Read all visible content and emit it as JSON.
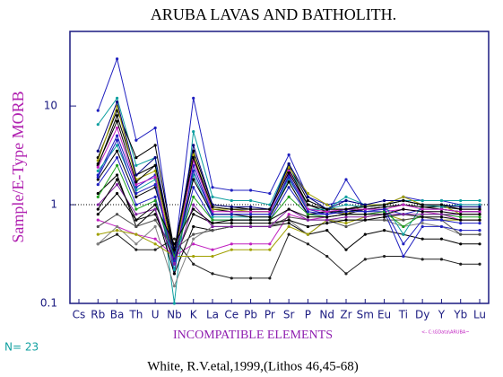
{
  "chart_data": {
    "type": "line",
    "title": "ARUBA LAVAS AND BATHOLITH.",
    "y_label": "Sample/E-Type MORB",
    "x_label": "INCOMPATIBLE ELEMENTS",
    "count_label": "N= 23",
    "file_label": "<- C:\\GData\\ARUBA~",
    "source": "White, R.V.etal,1999,(Lithos 46,45-68)",
    "log_y": true,
    "reference_line": 1,
    "ylim": [
      0.1,
      57
    ],
    "yticks": [
      0.1,
      1,
      10
    ],
    "categories": [
      "Cs",
      "Rb",
      "Ba",
      "Th",
      "U",
      "Nb",
      "K",
      "La",
      "Ce",
      "Pb",
      "Pr",
      "Sr",
      "P",
      "Nd",
      "Zr",
      "Sm",
      "Eu",
      "Ti",
      "Dy",
      "Y",
      "Yb",
      "Lu"
    ],
    "series": [
      {
        "color": "#2020c0",
        "values": [
          null,
          9,
          30,
          4.5,
          6,
          0.3,
          12,
          1.5,
          1.4,
          1.4,
          1.3,
          3.2,
          1.2,
          1,
          1.1,
          1,
          1,
          1.2,
          1.1,
          1.1,
          1,
          1
        ]
      },
      {
        "color": "#10a0a0",
        "values": [
          null,
          6.5,
          12,
          2.5,
          3,
          0.1,
          5.5,
          1.2,
          1.1,
          1.1,
          1,
          2.6,
          0.9,
          0.9,
          1.2,
          1,
          1,
          1.1,
          1.1,
          1.1,
          1.1,
          1.1
        ]
      },
      {
        "color": "#000000",
        "values": [
          null,
          3,
          9,
          3,
          4,
          0.35,
          3.5,
          1,
          0.95,
          0.9,
          0.9,
          2.5,
          1.1,
          0.9,
          0.9,
          1,
          1,
          1.1,
          1,
          1,
          0.95,
          0.95
        ]
      },
      {
        "color": "#000000",
        "values": [
          null,
          2.5,
          8,
          2,
          2.5,
          0.3,
          3,
          0.9,
          0.85,
          0.85,
          0.85,
          2.3,
          1,
          0.85,
          0.8,
          0.9,
          0.95,
          1,
          0.95,
          0.95,
          0.9,
          0.9
        ]
      },
      {
        "color": "#2020c0",
        "values": [
          null,
          2,
          5,
          1.5,
          2,
          0.2,
          2.5,
          0.8,
          0.8,
          0.8,
          0.8,
          2,
          0.9,
          0.8,
          1.8,
          0.9,
          0.9,
          0.8,
          0.9,
          0.9,
          0.85,
          0.85
        ]
      },
      {
        "color": "#a0a000",
        "values": [
          null,
          2.8,
          10,
          1.8,
          2.2,
          0.28,
          3.2,
          0.9,
          0.9,
          0.85,
          0.85,
          2.4,
          1.3,
          1,
          0.8,
          1,
          1,
          1.2,
          1,
          1,
          0.8,
          0.8
        ]
      },
      {
        "color": "#c020c0",
        "values": [
          null,
          0.7,
          0.6,
          0.5,
          0.45,
          0.3,
          0.4,
          0.35,
          0.4,
          0.4,
          0.4,
          0.8,
          0.7,
          0.75,
          0.8,
          0.8,
          0.85,
          0.9,
          0.85,
          0.8,
          0.7,
          0.7
        ]
      },
      {
        "color": "#202020",
        "values": [
          null,
          0.4,
          0.5,
          0.35,
          0.35,
          0.45,
          0.25,
          0.2,
          0.18,
          0.18,
          0.18,
          0.5,
          0.4,
          0.3,
          0.2,
          0.28,
          0.3,
          0.3,
          0.28,
          0.28,
          0.25,
          0.25
        ]
      },
      {
        "color": "#000000",
        "values": [
          null,
          1.3,
          2,
          0.6,
          0.9,
          0.2,
          0.6,
          0.55,
          0.6,
          0.6,
          0.6,
          0.65,
          0.5,
          0.55,
          0.35,
          0.5,
          0.55,
          0.5,
          0.45,
          0.45,
          0.4,
          0.4
        ]
      },
      {
        "color": "#808080",
        "values": [
          null,
          0.4,
          0.6,
          0.4,
          0.6,
          0.15,
          0.45,
          0.6,
          0.6,
          0.6,
          0.6,
          0.7,
          0.5,
          0.7,
          0.7,
          0.7,
          0.7,
          0.6,
          0.65,
          0.6,
          0.5,
          0.5
        ]
      },
      {
        "color": "#a0a000",
        "values": [
          null,
          0.5,
          0.55,
          0.5,
          0.4,
          0.3,
          0.3,
          0.3,
          0.35,
          0.35,
          0.35,
          0.6,
          0.5,
          0.7,
          0.65,
          0.75,
          0.8,
          0.7,
          0.75,
          0.7,
          0.7,
          0.7
        ]
      },
      {
        "color": "#2020c0",
        "values": [
          null,
          1.6,
          3,
          1,
          1.2,
          0.25,
          1.5,
          0.7,
          0.7,
          0.7,
          0.7,
          1.5,
          0.8,
          0.8,
          0.9,
          0.85,
          0.85,
          0.3,
          0.6,
          0.6,
          0.55,
          0.55
        ]
      },
      {
        "color": "#10a0a0",
        "values": [
          null,
          2.2,
          4,
          1.4,
          1.8,
          0.22,
          2,
          0.75,
          0.75,
          0.75,
          0.75,
          1.8,
          0.9,
          0.9,
          1,
          0.95,
          1,
          0.5,
          1,
          0.95,
          1,
          1
        ]
      },
      {
        "color": "#000000",
        "values": [
          null,
          1.8,
          3.5,
          1.2,
          1.5,
          0.3,
          1.8,
          0.8,
          0.8,
          0.75,
          0.75,
          1.7,
          0.8,
          0.85,
          0.85,
          0.9,
          0.95,
          1,
          0.95,
          0.9,
          0.85,
          0.85
        ]
      },
      {
        "color": "#c020c0",
        "values": [
          null,
          2.4,
          6,
          1.6,
          1.9,
          0.26,
          2.8,
          0.85,
          0.85,
          0.85,
          0.85,
          2.2,
          0.9,
          0.85,
          0.9,
          0.9,
          0.9,
          1,
          0.9,
          0.9,
          0.85,
          0.85
        ]
      },
      {
        "color": "#505050",
        "values": [
          null,
          0.6,
          0.8,
          0.6,
          0.7,
          0.35,
          0.5,
          0.55,
          0.6,
          0.6,
          0.6,
          0.75,
          0.7,
          0.7,
          0.6,
          0.7,
          0.7,
          0.7,
          0.75,
          0.7,
          0.5,
          0.5
        ]
      },
      {
        "color": "#000080",
        "values": [
          null,
          3.5,
          11,
          2,
          3,
          0.32,
          4,
          1,
          0.95,
          0.95,
          0.9,
          2.6,
          1.2,
          0.9,
          1.1,
          1,
          1.1,
          1.1,
          1,
          1,
          0.95,
          0.95
        ]
      },
      {
        "color": "#000000",
        "values": [
          null,
          0.8,
          1.3,
          0.7,
          0.8,
          0.28,
          0.8,
          0.65,
          0.65,
          0.65,
          0.65,
          0.7,
          0.6,
          0.65,
          0.7,
          0.7,
          0.75,
          0.8,
          0.75,
          0.75,
          0.7,
          0.7
        ]
      },
      {
        "color": "#20a020",
        "values": [
          null,
          1.2,
          2.5,
          0.9,
          1.1,
          0.3,
          1.2,
          0.7,
          0.7,
          0.7,
          0.7,
          1.2,
          0.8,
          0.75,
          0.8,
          0.8,
          0.85,
          0.6,
          0.8,
          0.8,
          0.75,
          0.75
        ]
      },
      {
        "color": "#000000",
        "values": [
          null,
          2.6,
          7,
          1.7,
          2.5,
          0.35,
          3,
          0.95,
          0.9,
          0.9,
          0.9,
          2.1,
          1,
          0.9,
          0.9,
          0.95,
          1,
          1.1,
          1,
          1,
          0.9,
          0.9
        ]
      },
      {
        "color": "#8020a0",
        "values": [
          null,
          1,
          1.6,
          0.8,
          0.9,
          0.25,
          1,
          0.6,
          0.6,
          0.6,
          0.6,
          0.9,
          0.7,
          0.7,
          0.75,
          0.75,
          0.8,
          0.8,
          0.8,
          0.8,
          0.8,
          0.8
        ]
      },
      {
        "color": "#2020c0",
        "values": [
          null,
          1.9,
          4.5,
          1.3,
          1.6,
          0.27,
          2.2,
          0.8,
          0.8,
          0.8,
          0.8,
          1.9,
          0.85,
          0.8,
          0.85,
          0.85,
          0.9,
          0.4,
          0.7,
          0.7,
          0.65,
          0.65
        ]
      },
      {
        "color": "#000000",
        "values": [
          null,
          0.9,
          1.8,
          0.7,
          1,
          0.4,
          0.9,
          0.65,
          0.7,
          0.7,
          0.7,
          0.9,
          0.75,
          0.75,
          0.8,
          0.8,
          0.8,
          0.9,
          0.85,
          0.85,
          0.8,
          0.8
        ]
      }
    ]
  }
}
